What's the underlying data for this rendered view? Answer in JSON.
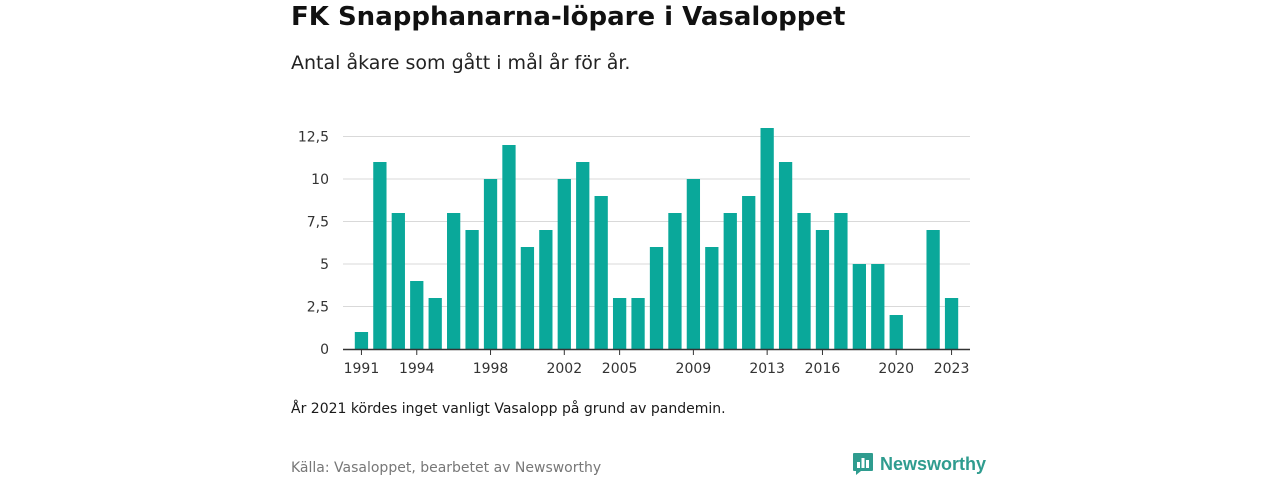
{
  "header": {
    "title": "FK Snapphanarna-löpare i Vasaloppet",
    "subtitle": "Antal åkare som gått i mål år för år."
  },
  "footer": {
    "note": "År 2021 kördes inget vanligt Vasalopp på grund av pandemin.",
    "source": "Källa: Vasaloppet, bearbetet av Newsworthy",
    "brand": "Newsworthy",
    "brand_icon": "bar-chart-speech-bubble-icon"
  },
  "colors": {
    "bar": "#0aa89a",
    "grid": "#d9d9d9",
    "axis": "#333333",
    "brand": "#2f9c8f"
  },
  "chart_data": {
    "type": "bar",
    "categories": [
      "1991",
      "1992",
      "1993",
      "1994",
      "1995",
      "1996",
      "1997",
      "1998",
      "1999",
      "2000",
      "2001",
      "2002",
      "2003",
      "2004",
      "2005",
      "2006",
      "2007",
      "2008",
      "2009",
      "2010",
      "2011",
      "2012",
      "2013",
      "2014",
      "2015",
      "2016",
      "2017",
      "2018",
      "2019",
      "2020",
      "2021",
      "2022",
      "2023"
    ],
    "values": [
      1,
      11,
      8,
      4,
      3,
      8,
      7,
      10,
      12,
      6,
      7,
      10,
      11,
      9,
      3,
      3,
      6,
      8,
      10,
      6,
      8,
      9,
      13,
      11,
      8,
      7,
      8,
      5,
      5,
      2,
      null,
      7,
      3
    ],
    "x_tick_labels": [
      "1991",
      "1994",
      "1998",
      "2002",
      "2005",
      "2009",
      "2013",
      "2016",
      "2020",
      "2023"
    ],
    "y_tick_labels": [
      "0",
      "2,5",
      "5",
      "7,5",
      "10",
      "12,5"
    ],
    "y_ticks": [
      0,
      2.5,
      5,
      7.5,
      10,
      12.5
    ],
    "ylim": [
      0,
      13
    ],
    "grid": true,
    "xlabel": "",
    "ylabel": ""
  }
}
